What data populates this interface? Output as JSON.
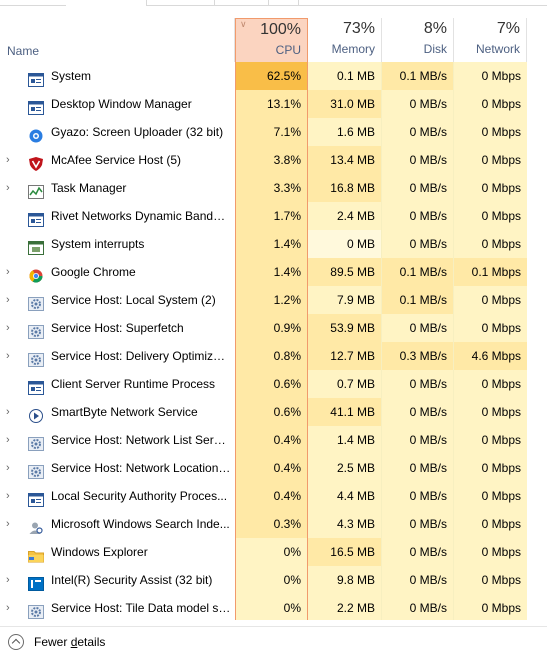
{
  "columns": {
    "name_label": "Name",
    "cpu": {
      "pct": "100%",
      "label": "CPU"
    },
    "memory": {
      "pct": "73%",
      "label": "Memory"
    },
    "disk": {
      "pct": "8%",
      "label": "Disk"
    },
    "network": {
      "pct": "7%",
      "label": "Network"
    }
  },
  "colors": {
    "heat_low": "#fff4c4",
    "heat_mid": "#ffe9a6",
    "heat_high": "#fbd479",
    "heat_max": "#f9be48",
    "cpu_header": "#fbd4c0",
    "cpu_border": "#f19a6c"
  },
  "processes": [
    {
      "name": "System",
      "expandable": false,
      "icon": "system-window-icon",
      "cpu": "62.5%",
      "memory": "0.1 MB",
      "disk": "0.1 MB/s",
      "network": "0 Mbps",
      "cpu_level": "max",
      "mem_level": "low",
      "disk_level": "mid",
      "net_level": "low"
    },
    {
      "name": "Desktop Window Manager",
      "expandable": false,
      "icon": "window-icon",
      "cpu": "13.1%",
      "memory": "31.0 MB",
      "disk": "0 MB/s",
      "network": "0 Mbps",
      "cpu_level": "mid",
      "mem_level": "mid",
      "disk_level": "low",
      "net_level": "low"
    },
    {
      "name": "Gyazo: Screen Uploader (32 bit)",
      "expandable": false,
      "icon": "gyazo-icon",
      "cpu": "7.1%",
      "memory": "1.6 MB",
      "disk": "0 MB/s",
      "network": "0 Mbps",
      "cpu_level": "mid",
      "mem_level": "low",
      "disk_level": "low",
      "net_level": "low"
    },
    {
      "name": "McAfee Service Host (5)",
      "expandable": true,
      "icon": "mcafee-shield-icon",
      "cpu": "3.8%",
      "memory": "13.4 MB",
      "disk": "0 MB/s",
      "network": "0 Mbps",
      "cpu_level": "mid",
      "mem_level": "mid",
      "disk_level": "low",
      "net_level": "low"
    },
    {
      "name": "Task Manager",
      "expandable": true,
      "icon": "task-manager-icon",
      "cpu": "3.3%",
      "memory": "16.8 MB",
      "disk": "0 MB/s",
      "network": "0 Mbps",
      "cpu_level": "mid",
      "mem_level": "mid",
      "disk_level": "low",
      "net_level": "low"
    },
    {
      "name": "Rivet Networks Dynamic Bandw...",
      "expandable": false,
      "icon": "window-icon",
      "cpu": "1.7%",
      "memory": "2.4 MB",
      "disk": "0 MB/s",
      "network": "0 Mbps",
      "cpu_level": "mid",
      "mem_level": "low",
      "disk_level": "low",
      "net_level": "low"
    },
    {
      "name": "System interrupts",
      "expandable": false,
      "icon": "cpu-chip-icon",
      "cpu": "1.4%",
      "memory": "0 MB",
      "disk": "0 MB/s",
      "network": "0 Mbps",
      "cpu_level": "mid",
      "mem_level": "lowest",
      "disk_level": "low",
      "net_level": "low"
    },
    {
      "name": "Google Chrome",
      "expandable": true,
      "icon": "chrome-icon",
      "cpu": "1.4%",
      "memory": "89.5 MB",
      "disk": "0.1 MB/s",
      "network": "0.1 Mbps",
      "cpu_level": "mid",
      "mem_level": "mid",
      "disk_level": "mid",
      "net_level": "mid"
    },
    {
      "name": "Service Host: Local System (2)",
      "expandable": true,
      "icon": "gear-icon",
      "cpu": "1.2%",
      "memory": "7.9 MB",
      "disk": "0.1 MB/s",
      "network": "0 Mbps",
      "cpu_level": "mid",
      "mem_level": "low",
      "disk_level": "mid",
      "net_level": "low"
    },
    {
      "name": "Service Host: Superfetch",
      "expandable": true,
      "icon": "gear-icon",
      "cpu": "0.9%",
      "memory": "53.9 MB",
      "disk": "0 MB/s",
      "network": "0 Mbps",
      "cpu_level": "mid",
      "mem_level": "mid",
      "disk_level": "low",
      "net_level": "low"
    },
    {
      "name": "Service Host: Delivery Optimizat...",
      "expandable": true,
      "icon": "gear-icon",
      "cpu": "0.8%",
      "memory": "12.7 MB",
      "disk": "0.3 MB/s",
      "network": "4.6 Mbps",
      "cpu_level": "mid",
      "mem_level": "mid",
      "disk_level": "mid",
      "net_level": "mid"
    },
    {
      "name": "Client Server Runtime Process",
      "expandable": false,
      "icon": "window-icon",
      "cpu": "0.6%",
      "memory": "0.7 MB",
      "disk": "0 MB/s",
      "network": "0 Mbps",
      "cpu_level": "mid",
      "mem_level": "low",
      "disk_level": "low",
      "net_level": "low"
    },
    {
      "name": "SmartByte Network Service",
      "expandable": true,
      "icon": "smartbyte-icon",
      "cpu": "0.6%",
      "memory": "41.1 MB",
      "disk": "0 MB/s",
      "network": "0 Mbps",
      "cpu_level": "mid",
      "mem_level": "mid",
      "disk_level": "low",
      "net_level": "low"
    },
    {
      "name": "Service Host: Network List Service",
      "expandable": true,
      "icon": "gear-icon",
      "cpu": "0.4%",
      "memory": "1.4 MB",
      "disk": "0 MB/s",
      "network": "0 Mbps",
      "cpu_level": "mid",
      "mem_level": "low",
      "disk_level": "low",
      "net_level": "low"
    },
    {
      "name": "Service Host: Network Location ...",
      "expandable": true,
      "icon": "gear-icon",
      "cpu": "0.4%",
      "memory": "2.5 MB",
      "disk": "0 MB/s",
      "network": "0 Mbps",
      "cpu_level": "mid",
      "mem_level": "low",
      "disk_level": "low",
      "net_level": "low"
    },
    {
      "name": "Local Security Authority Proces...",
      "expandable": true,
      "icon": "window-icon",
      "cpu": "0.4%",
      "memory": "4.4 MB",
      "disk": "0 MB/s",
      "network": "0 Mbps",
      "cpu_level": "mid",
      "mem_level": "low",
      "disk_level": "low",
      "net_level": "low"
    },
    {
      "name": "Microsoft Windows Search Inde...",
      "expandable": true,
      "icon": "search-person-icon",
      "cpu": "0.3%",
      "memory": "4.3 MB",
      "disk": "0 MB/s",
      "network": "0 Mbps",
      "cpu_level": "mid",
      "mem_level": "low",
      "disk_level": "low",
      "net_level": "low"
    },
    {
      "name": "Windows Explorer",
      "expandable": false,
      "icon": "folder-icon",
      "cpu": "0%",
      "memory": "16.5 MB",
      "disk": "0 MB/s",
      "network": "0 Mbps",
      "cpu_level": "low",
      "mem_level": "mid",
      "disk_level": "low",
      "net_level": "low"
    },
    {
      "name": "Intel(R) Security Assist (32 bit)",
      "expandable": true,
      "icon": "intel-icon",
      "cpu": "0%",
      "memory": "9.8 MB",
      "disk": "0 MB/s",
      "network": "0 Mbps",
      "cpu_level": "low",
      "mem_level": "low",
      "disk_level": "low",
      "net_level": "low"
    },
    {
      "name": "Service Host: Tile Data model se...",
      "expandable": true,
      "icon": "gear-icon",
      "cpu": "0%",
      "memory": "2.2 MB",
      "disk": "0 MB/s",
      "network": "0 Mbps",
      "cpu_level": "low",
      "mem_level": "low",
      "disk_level": "low",
      "net_level": "low"
    }
  ],
  "footer": {
    "label_pre": "Fewer ",
    "label_underlined": "d",
    "label_post": "etails"
  }
}
